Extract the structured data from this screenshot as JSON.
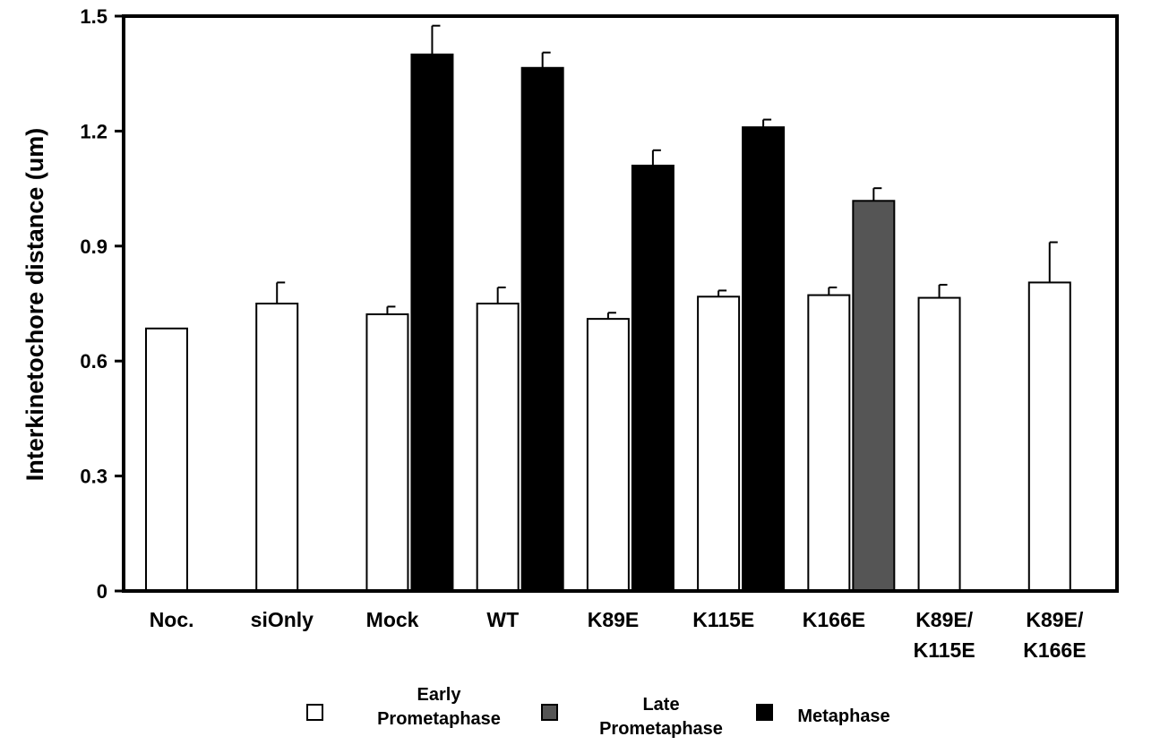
{
  "chart_data": {
    "type": "bar",
    "ylabel": "Interkinetochore distance (um)",
    "ylim": [
      0,
      1.5
    ],
    "yticks": [
      "0",
      "0.3",
      "0.6",
      "0.9",
      "1.2",
      "1.5"
    ],
    "categories": [
      [
        "Noc."
      ],
      [
        "siOnly"
      ],
      [
        "Mock"
      ],
      [
        "WT"
      ],
      [
        "K89E"
      ],
      [
        "K115E"
      ],
      [
        "K166E"
      ],
      [
        "K89E/",
        "K115E"
      ],
      [
        "K89E/",
        "K166E"
      ]
    ],
    "series": [
      {
        "name": "Early Prometaphase",
        "legend_lines": [
          "Early",
          "Prometaphase"
        ],
        "color": "#ffffff",
        "values": [
          0.685,
          0.75,
          0.722,
          0.75,
          0.71,
          0.768,
          0.772,
          0.765,
          0.805
        ],
        "errors": [
          null,
          0.055,
          0.02,
          0.042,
          0.016,
          0.016,
          0.02,
          0.034,
          0.105
        ]
      },
      {
        "name": "Late Prometaphase",
        "legend_lines": [
          "Late",
          "Prometaphase"
        ],
        "color": "#555555",
        "values": [
          null,
          null,
          null,
          null,
          null,
          null,
          1.018,
          null,
          null
        ],
        "errors": [
          null,
          null,
          null,
          null,
          null,
          null,
          0.033,
          null,
          null
        ]
      },
      {
        "name": "Metaphase",
        "legend_lines": [
          "Metaphase"
        ],
        "color": "#000000",
        "values": [
          null,
          null,
          1.4,
          1.365,
          1.11,
          1.21,
          null,
          null,
          null
        ],
        "errors": [
          null,
          null,
          0.075,
          0.04,
          0.04,
          0.02,
          null,
          null,
          null
        ]
      }
    ],
    "grid": false,
    "legend_position": "bottom"
  }
}
